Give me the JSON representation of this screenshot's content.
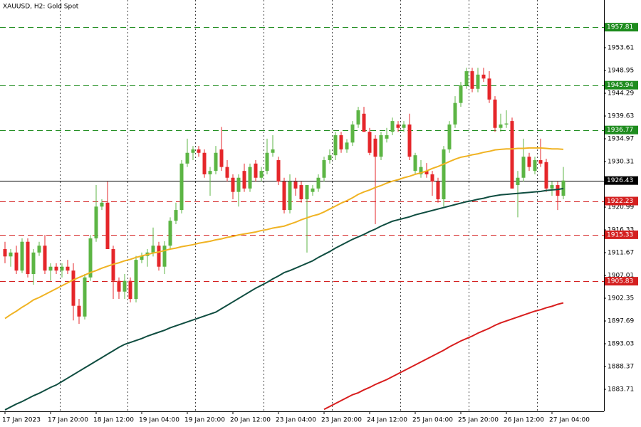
{
  "chart_data": {
    "type": "candlestick",
    "title": "XAUUSD, H2:  Gold Spot",
    "categories": [
      "17 Jan 2023",
      null,
      null,
      null,
      null,
      null,
      null,
      null,
      "17 Jan 20:00",
      null,
      null,
      null,
      null,
      null,
      null,
      null,
      "18 Jan 12:00",
      null,
      null,
      null,
      null,
      null,
      null,
      null,
      "19 Jan 04:00",
      null,
      null,
      null,
      null,
      null,
      null,
      null,
      "19 Jan 20:00",
      null,
      null,
      null,
      null,
      null,
      null,
      null,
      "20 Jan 12:00",
      null,
      null,
      null,
      null,
      null,
      null,
      null,
      "23 Jan 04:00",
      null,
      null,
      null,
      null,
      null,
      null,
      null,
      "23 Jan 20:00",
      null,
      null,
      null,
      null,
      null,
      null,
      null,
      "24 Jan 12:00",
      null,
      null,
      null,
      null,
      null,
      null,
      null,
      "25 Jan 04:00",
      null,
      null,
      null,
      null,
      null,
      null,
      null,
      "25 Jan 20:00",
      null,
      null,
      null,
      null,
      null,
      null,
      null,
      "26 Jan 12:00",
      null,
      null,
      null,
      null,
      null,
      null,
      null,
      "27 Jan 04:00",
      null,
      null
    ],
    "ohlc": [
      [
        1912.4,
        1913.9,
        1909.5,
        1910.9
      ],
      [
        1910.9,
        1912.4,
        1908.8,
        1911.7
      ],
      [
        1911.7,
        1913.1,
        1907.3,
        1908.0
      ],
      [
        1908.0,
        1914.6,
        1907.5,
        1913.9
      ],
      [
        1913.9,
        1914.6,
        1906.6,
        1907.3
      ],
      [
        1907.3,
        1912.4,
        1905.1,
        1911.7
      ],
      [
        1911.7,
        1913.9,
        1911.0,
        1913.1
      ],
      [
        1913.1,
        1915.3,
        1907.3,
        1908.0
      ],
      [
        1908.0,
        1909.5,
        1905.9,
        1908.8
      ],
      [
        1908.8,
        1909.5,
        1907.3,
        1908.0
      ],
      [
        1908.0,
        1909.5,
        1906.6,
        1908.8
      ],
      [
        1908.8,
        1910.2,
        1907.3,
        1908.0
      ],
      [
        1908.0,
        1909.5,
        1897.8,
        1900.8
      ],
      [
        1900.8,
        1902.2,
        1897.1,
        1898.6
      ],
      [
        1898.6,
        1907.3,
        1898.0,
        1906.6
      ],
      [
        1906.6,
        1915.3,
        1905.9,
        1914.6
      ],
      [
        1914.6,
        1925.5,
        1913.9,
        1921.1
      ],
      [
        1921.1,
        1922.6,
        1920.4,
        1921.9
      ],
      [
        1921.9,
        1926.2,
        1912.4,
        1912.4
      ],
      [
        1912.4,
        1913.1,
        1902.2,
        1905.9
      ],
      [
        1905.9,
        1906.6,
        1902.2,
        1903.7
      ],
      [
        1903.7,
        1907.3,
        1902.2,
        1905.9
      ],
      [
        1905.9,
        1906.6,
        1901.5,
        1902.2
      ],
      [
        1902.2,
        1911.0,
        1901.5,
        1910.2
      ],
      [
        1910.2,
        1911.7,
        1909.5,
        1911.0
      ],
      [
        1911.0,
        1912.4,
        1908.8,
        1911.7
      ],
      [
        1911.7,
        1916.8,
        1910.9,
        1913.1
      ],
      [
        1913.1,
        1913.9,
        1908.0,
        1908.8
      ],
      [
        1908.8,
        1914.0,
        1907.3,
        1913.1
      ],
      [
        1913.1,
        1918.9,
        1912.4,
        1918.2
      ],
      [
        1918.2,
        1921.9,
        1917.5,
        1920.4
      ],
      [
        1920.4,
        1930.6,
        1919.7,
        1929.9
      ],
      [
        1929.9,
        1935.0,
        1929.2,
        1932.1
      ],
      [
        1932.1,
        1933.5,
        1930.6,
        1932.8
      ],
      [
        1932.8,
        1933.5,
        1931.3,
        1932.1
      ],
      [
        1932.1,
        1932.8,
        1927.0,
        1927.7
      ],
      [
        1927.7,
        1929.2,
        1923.3,
        1928.4
      ],
      [
        1928.4,
        1933.5,
        1927.7,
        1932.1
      ],
      [
        1932.8,
        1937.4,
        1928.4,
        1929.2
      ],
      [
        1929.2,
        1930.6,
        1926.2,
        1927.0
      ],
      [
        1927.0,
        1927.7,
        1922.6,
        1924.1
      ],
      [
        1924.1,
        1927.7,
        1921.1,
        1927.0
      ],
      [
        1928.4,
        1929.9,
        1924.1,
        1924.8
      ],
      [
        1924.8,
        1929.9,
        1924.1,
        1929.2
      ],
      [
        1929.9,
        1930.6,
        1926.2,
        1927.0
      ],
      [
        1927.0,
        1929.2,
        1926.2,
        1928.4
      ],
      [
        1928.4,
        1935.0,
        1927.7,
        1932.1
      ],
      [
        1932.1,
        1935.7,
        1931.3,
        1932.8
      ],
      [
        1930.6,
        1931.3,
        1925.5,
        1926.2
      ],
      [
        1926.2,
        1927.0,
        1919.7,
        1920.4
      ],
      [
        1920.4,
        1927.7,
        1919.7,
        1926.2
      ],
      [
        1926.2,
        1927.0,
        1923.3,
        1924.8
      ],
      [
        1925.5,
        1926.2,
        1921.9,
        1922.6
      ],
      [
        1922.6,
        1925.5,
        1911.7,
        1925.5
      ],
      [
        1924.1,
        1925.5,
        1923.3,
        1924.8
      ],
      [
        1924.8,
        1927.7,
        1924.1,
        1927.0
      ],
      [
        1927.0,
        1931.3,
        1926.2,
        1930.6
      ],
      [
        1930.6,
        1932.8,
        1929.9,
        1931.6
      ],
      [
        1931.6,
        1936.4,
        1930.6,
        1935.7
      ],
      [
        1935.7,
        1936.4,
        1932.1,
        1932.8
      ],
      [
        1932.8,
        1934.9,
        1932.1,
        1934.2
      ],
      [
        1934.2,
        1938.6,
        1933.5,
        1937.9
      ],
      [
        1937.9,
        1941.5,
        1937.2,
        1940.8
      ],
      [
        1940.1,
        1941.5,
        1936.4,
        1936.4
      ],
      [
        1936.4,
        1937.2,
        1931.6,
        1932.1
      ],
      [
        1935.0,
        1935.7,
        1917.5,
        1931.3
      ],
      [
        1931.3,
        1936.4,
        1930.6,
        1935.7
      ],
      [
        1935.0,
        1937.2,
        1934.2,
        1935.7
      ],
      [
        1936.4,
        1939.3,
        1935.7,
        1938.6
      ],
      [
        1937.9,
        1938.6,
        1936.4,
        1937.2
      ],
      [
        1937.2,
        1938.6,
        1936.4,
        1937.9
      ],
      [
        1937.9,
        1940.1,
        1930.6,
        1931.3
      ],
      [
        1928.4,
        1932.1,
        1927.7,
        1931.6
      ],
      [
        1927.7,
        1930.6,
        1927.0,
        1929.2
      ],
      [
        1928.4,
        1930.0,
        1927.0,
        1927.7
      ],
      [
        1927.7,
        1928.4,
        1923.3,
        1926.2
      ],
      [
        1926.2,
        1927.0,
        1921.9,
        1922.6
      ],
      [
        1922.6,
        1933.5,
        1921.1,
        1932.8
      ],
      [
        1932.8,
        1938.6,
        1932.1,
        1937.9
      ],
      [
        1937.9,
        1943.7,
        1937.2,
        1942.3
      ],
      [
        1942.3,
        1946.6,
        1941.5,
        1945.9
      ],
      [
        1945.9,
        1949.5,
        1945.2,
        1948.8
      ],
      [
        1948.8,
        1949.5,
        1944.5,
        1945.2
      ],
      [
        1945.2,
        1949.5,
        1944.5,
        1948.1
      ],
      [
        1948.1,
        1949.5,
        1946.6,
        1947.3
      ],
      [
        1947.3,
        1948.8,
        1942.3,
        1943.0
      ],
      [
        1943.0,
        1943.7,
        1936.4,
        1937.2
      ],
      [
        1937.2,
        1940.1,
        1936.4,
        1937.9
      ],
      [
        1937.9,
        1940.8,
        1937.2,
        1938.1
      ],
      [
        1938.6,
        1939.3,
        1924.8,
        1924.8
      ],
      [
        1925.5,
        1928.4,
        1918.9,
        1927.0
      ],
      [
        1927.0,
        1935.0,
        1926.2,
        1931.3
      ],
      [
        1931.3,
        1932.1,
        1928.4,
        1929.2
      ],
      [
        1928.4,
        1931.3,
        1927.7,
        1930.6
      ],
      [
        1930.6,
        1935.0,
        1929.2,
        1929.9
      ],
      [
        1930.2,
        1930.9,
        1924.1,
        1924.8
      ],
      [
        1924.8,
        1926.2,
        1923.3,
        1925.5
      ],
      [
        1925.5,
        1926.2,
        1920.4,
        1923.3
      ],
      [
        1923.3,
        1929.2,
        1922.6,
        1926.43
      ]
    ],
    "up_color": "#5cb544",
    "down_color": "#e5262a",
    "series": [
      {
        "color": "#f0b323",
        "values": [
          1898.2,
          1899.0,
          1899.7,
          1900.5,
          1901.2,
          1902.0,
          1902.5,
          1903.1,
          1903.7,
          1904.3,
          1904.9,
          1905.5,
          1906.1,
          1906.6,
          1907.1,
          1907.6,
          1908.0,
          1908.5,
          1908.9,
          1909.3,
          1909.6,
          1910.0,
          1910.3,
          1910.7,
          1911.0,
          1911.3,
          1911.6,
          1911.8,
          1912.1,
          1912.4,
          1912.6,
          1912.9,
          1913.1,
          1913.3,
          1913.6,
          1913.8,
          1914.0,
          1914.3,
          1914.5,
          1914.8,
          1915.0,
          1915.3,
          1915.5,
          1915.7,
          1915.9,
          1916.2,
          1916.4,
          1916.7,
          1916.9,
          1917.1,
          1917.5,
          1917.9,
          1918.4,
          1918.8,
          1919.2,
          1919.5,
          1920.0,
          1920.6,
          1921.2,
          1921.8,
          1922.3,
          1922.9,
          1923.6,
          1924.1,
          1924.5,
          1925.0,
          1925.4,
          1925.9,
          1926.3,
          1926.6,
          1927.0,
          1927.3,
          1927.7,
          1928.0,
          1928.4,
          1928.9,
          1929.3,
          1929.8,
          1930.3,
          1930.8,
          1931.2,
          1931.4,
          1931.7,
          1931.9,
          1932.2,
          1932.4,
          1932.7,
          1932.8,
          1932.9,
          1932.9,
          1933.0,
          1933.0,
          1933.1,
          1933.1,
          1933.1,
          1933.0,
          1932.9,
          1932.9,
          1932.8
        ]
      },
      {
        "color": "#0f4d40",
        "values": [
          1879.5,
          1880.1,
          1880.7,
          1881.2,
          1881.8,
          1882.4,
          1882.9,
          1883.5,
          1884.1,
          1884.6,
          1885.3,
          1886.0,
          1886.7,
          1887.4,
          1888.1,
          1888.8,
          1889.5,
          1890.2,
          1890.9,
          1891.6,
          1892.3,
          1892.9,
          1893.3,
          1893.7,
          1894.1,
          1894.6,
          1895.0,
          1895.4,
          1895.8,
          1896.3,
          1896.7,
          1897.1,
          1897.5,
          1897.9,
          1898.3,
          1898.7,
          1899.1,
          1899.5,
          1900.2,
          1900.9,
          1901.6,
          1902.3,
          1903.0,
          1903.7,
          1904.4,
          1905.0,
          1905.6,
          1906.3,
          1906.9,
          1907.6,
          1908.0,
          1908.5,
          1909.0,
          1909.5,
          1910.0,
          1910.7,
          1911.3,
          1911.9,
          1912.6,
          1913.2,
          1913.8,
          1914.4,
          1914.9,
          1915.4,
          1916.0,
          1916.5,
          1917.1,
          1917.6,
          1918.1,
          1918.4,
          1918.7,
          1919.0,
          1919.4,
          1919.7,
          1920.0,
          1920.3,
          1920.6,
          1920.9,
          1921.2,
          1921.5,
          1921.8,
          1922.1,
          1922.3,
          1922.6,
          1922.8,
          1923.1,
          1923.3,
          1923.5,
          1923.6,
          1923.7,
          1923.8,
          1923.9,
          1924.0,
          1924.1,
          1924.2,
          1924.4,
          1924.5,
          1924.6,
          1924.8
        ]
      },
      {
        "color": "#d81e1e",
        "values": [
          null,
          null,
          null,
          null,
          null,
          null,
          null,
          null,
          null,
          null,
          null,
          null,
          null,
          null,
          null,
          null,
          null,
          null,
          null,
          null,
          null,
          null,
          null,
          null,
          null,
          null,
          null,
          null,
          null,
          null,
          null,
          null,
          null,
          null,
          null,
          null,
          null,
          null,
          null,
          null,
          null,
          null,
          null,
          null,
          null,
          null,
          null,
          null,
          null,
          null,
          null,
          null,
          null,
          null,
          null,
          null,
          1879.6,
          1880.2,
          1880.8,
          1881.4,
          1882.0,
          1882.6,
          1883.0,
          1883.6,
          1884.1,
          1884.7,
          1885.2,
          1885.7,
          1886.3,
          1886.9,
          1887.5,
          1888.1,
          1888.7,
          1889.3,
          1889.9,
          1890.5,
          1891.1,
          1891.7,
          1892.4,
          1893.0,
          1893.6,
          1894.1,
          1894.6,
          1895.2,
          1895.7,
          1896.2,
          1896.8,
          1897.3,
          1897.7,
          1898.1,
          1898.5,
          1898.9,
          1899.3,
          1899.7,
          1900.0,
          1900.4,
          1900.7,
          1901.1,
          1901.4
        ]
      }
    ],
    "levels": [
      {
        "value": 1957.81,
        "color": "#1e8c1e"
      },
      {
        "value": 1945.94,
        "color": "#1e8c1e"
      },
      {
        "value": 1936.77,
        "color": "#1e8c1e"
      },
      {
        "value": 1926.43,
        "color": "#000000",
        "solid": true
      },
      {
        "value": 1922.23,
        "color": "#d42020"
      },
      {
        "value": 1915.33,
        "color": "#d42020"
      },
      {
        "value": 1905.83,
        "color": "#d42020"
      }
    ],
    "ylim": [
      1879.2,
      1963.37
    ],
    "yticks": [
      1953.61,
      1948.95,
      1944.29,
      1939.63,
      1934.97,
      1930.31,
      1920.99,
      1916.33,
      1911.67,
      1907.01,
      1902.35,
      1897.69,
      1893.03,
      1888.37,
      1883.71
    ]
  }
}
